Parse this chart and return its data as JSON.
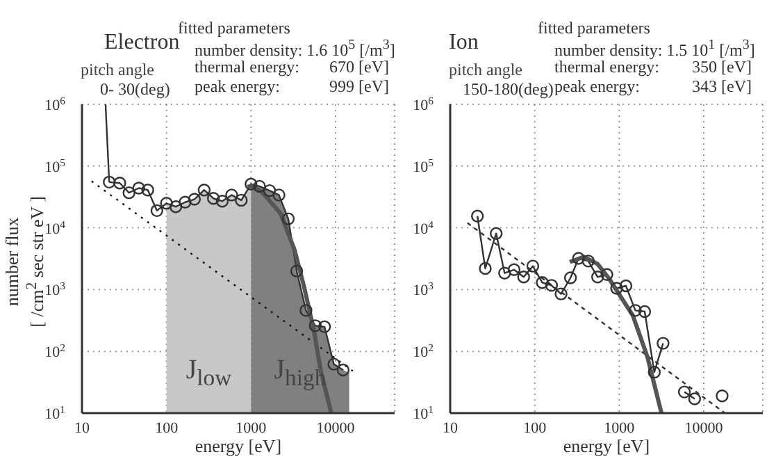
{
  "chart_data": [
    {
      "type": "line",
      "title": "Electron",
      "subtitle": "pitch angle\n0- 30(deg)",
      "xlabel": "energy [eV]",
      "ylabel": "number flux\n[ /cm$^{2}$ sec str eV ]",
      "annotations": [
        "fitted parameters",
        "number density: 1.6 10$^{5}$ [/m$^{3}$]",
        "thermal energy: 670 [eV]",
        "peak energy: 999 [eV]"
      ],
      "xlim": [
        10,
        50000
      ],
      "xticks": [
        10,
        100,
        1000,
        10000
      ],
      "ylim": [
        10,
        1000000
      ],
      "yticks": [
        {
          "value": 10,
          "label": "10$^{1}$"
        },
        {
          "value": 100,
          "label": "10$^{2}$"
        },
        {
          "value": 1000,
          "label": "10$^{3}$"
        },
        {
          "value": 10000,
          "label": "10$^{4}$"
        },
        {
          "value": 100000,
          "label": "10$^{5}$"
        },
        {
          "value": 1000000,
          "label": "10$^{6}$"
        }
      ],
      "log": "xy",
      "grid": true,
      "series": [
        {
          "type": "area",
          "name": "J$_{low}$",
          "color": "#c8c8c8",
          "x": [
            100,
            129,
            166,
            214,
            279,
            359,
            457,
            590,
            767,
            1000
          ],
          "values": [
            25000,
            22000,
            26000,
            29000,
            41000,
            30000,
            27000,
            34000,
            28000,
            51000
          ]
        },
        {
          "type": "area",
          "name": "J$_{high}$",
          "color": "#808080",
          "x": [
            1000,
            1260,
            1660,
            2140,
            2760,
            3470,
            4470,
            5760,
            7410,
            9550,
            12300,
            14500
          ],
          "values": [
            51000,
            47000,
            40000,
            34000,
            14000,
            2000,
            460,
            260,
            250,
            62,
            50,
            45
          ]
        },
        {
          "type": "line",
          "color": "#333333",
          "marker": "circle",
          "x": [
            21,
            28,
            36,
            47,
            60,
            77,
            100,
            129,
            166,
            214,
            279,
            359,
            457,
            590,
            767,
            1000,
            1260,
            1660,
            2140,
            2760,
            3470,
            4470,
            5760,
            7410,
            9550,
            12300
          ],
          "values": [
            55000,
            53000,
            37000,
            44000,
            41000,
            19000,
            25000,
            22000,
            26000,
            29000,
            41000,
            30000,
            27000,
            34000,
            28000,
            51000,
            47000,
            40000,
            34000,
            14000,
            2000,
            460,
            260,
            250,
            62,
            50
          ]
        },
        {
          "type": "line",
          "color": "#333333",
          "marker": "none",
          "x": [
            19,
            21
          ],
          "values": [
            1000000,
            55000
          ]
        },
        {
          "type": "line",
          "color": "#111111",
          "marker": "none",
          "line_style": "dotted",
          "x": [
            13,
            16000
          ],
          "values": [
            57000,
            48
          ]
        },
        {
          "type": "line",
          "color": "#555555",
          "marker": "none",
          "x": [
            910,
            1000,
            1350,
            2240,
            3290,
            4270,
            5500,
            6700,
            8900
          ],
          "values": [
            46000,
            48000,
            38000,
            17000,
            4300,
            1070,
            230,
            48,
            10
          ]
        }
      ]
    },
    {
      "type": "line",
      "title": "Ion",
      "subtitle": "pitch angle\n150-180(deg)",
      "xlabel": "energy [eV]",
      "annotations": [
        "fitted parameters",
        "number density: 1.5 10$^{1}$ [/m$^{3}$]",
        "thermal energy: 350 [eV]",
        "peak energy: 343 [eV]"
      ],
      "xlim": [
        10,
        50000
      ],
      "xticks": [
        10,
        100,
        1000,
        10000
      ],
      "ylim": [
        10,
        1000000
      ],
      "yticks": [
        {
          "value": 10,
          "label": "10$^{1}$"
        },
        {
          "value": 100,
          "label": "10$^{2}$"
        },
        {
          "value": 1000,
          "label": "10$^{3}$"
        },
        {
          "value": 10000,
          "label": "10$^{4}$"
        },
        {
          "value": 100000,
          "label": "10$^{5}$"
        },
        {
          "value": 1000000,
          "label": "10$^{6}$"
        }
      ],
      "log": "xy",
      "grid": true,
      "series": [
        {
          "type": "line",
          "color": "#333333",
          "marker": "circle",
          "x": [
            21,
            26,
            35,
            44,
            57,
            74,
            95,
            123,
            158,
            205,
            265,
            330,
            430,
            555,
            715,
            930,
            1200,
            1550,
            2000,
            2600,
            3300,
            4500,
            5900,
            7800,
            11000,
            16500
          ],
          "values": [
            15500,
            2200,
            8100,
            1850,
            2100,
            1600,
            2400,
            1300,
            1170,
            850,
            1550,
            3200,
            2900,
            1600,
            1750,
            1050,
            1150,
            460,
            440,
            46,
            135,
            null,
            22,
            17,
            null,
            19
          ]
        },
        {
          "type": "line",
          "color": "#333333",
          "marker": "none",
          "line_style": "dashed",
          "x": [
            16,
            17800
          ],
          "values": [
            12000,
            10
          ]
        },
        {
          "type": "line",
          "color": "#555555",
          "marker": "none",
          "x": [
            260,
            380,
            555,
            760,
            1450,
            2150,
            3160
          ],
          "values": [
            2800,
            3400,
            2600,
            1500,
            380,
            82,
            10
          ]
        }
      ]
    }
  ]
}
